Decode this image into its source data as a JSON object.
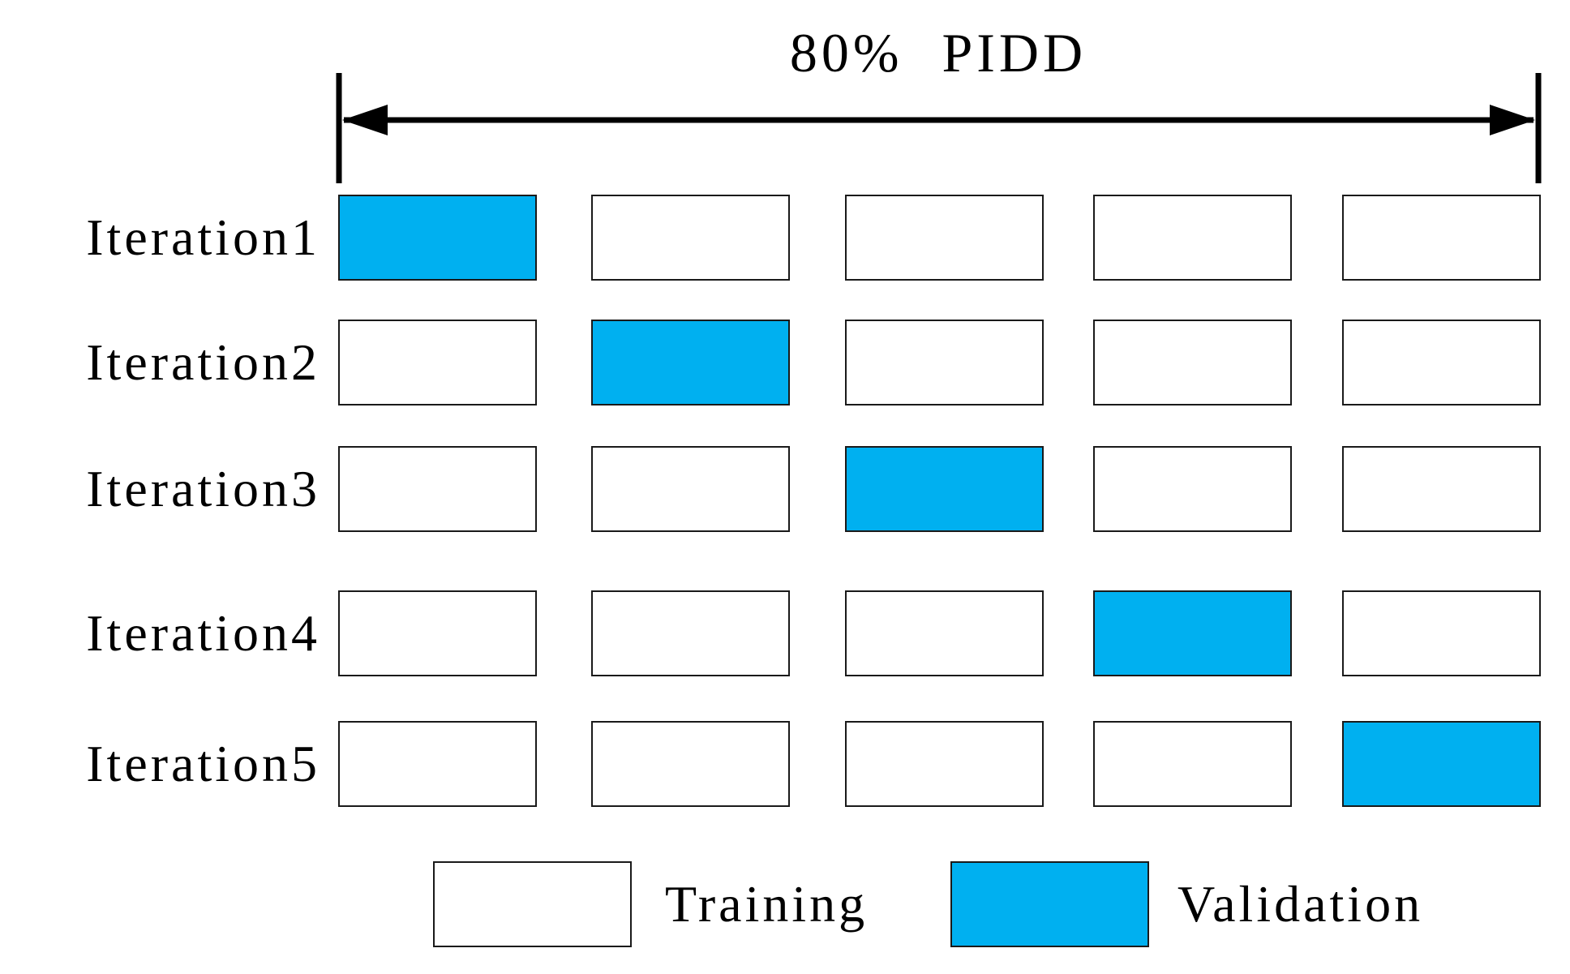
{
  "figure": {
    "title": "80% PIDD",
    "colors": {
      "validation": "#00b0f0",
      "training": "#ffffff",
      "box_border": "#1a1a1a",
      "arrow": "#000000",
      "background": "#ffffff"
    },
    "folds_per_iteration": 5,
    "iterations": [
      {
        "label": "Iteration1",
        "validation_fold": 1,
        "folds": [
          "validation",
          "training",
          "training",
          "training",
          "training"
        ]
      },
      {
        "label": "Iteration2",
        "validation_fold": 2,
        "folds": [
          "training",
          "validation",
          "training",
          "training",
          "training"
        ]
      },
      {
        "label": "Iteration3",
        "validation_fold": 3,
        "folds": [
          "training",
          "training",
          "validation",
          "training",
          "training"
        ]
      },
      {
        "label": "Iteration4",
        "validation_fold": 4,
        "folds": [
          "training",
          "training",
          "training",
          "validation",
          "training"
        ]
      },
      {
        "label": "Iteration5",
        "validation_fold": 5,
        "folds": [
          "training",
          "training",
          "training",
          "training",
          "validation"
        ]
      }
    ],
    "legend": [
      {
        "label": "Training",
        "type": "training",
        "color": "#ffffff"
      },
      {
        "label": "Validation",
        "type": "validation",
        "color": "#00b0f0"
      }
    ]
  }
}
